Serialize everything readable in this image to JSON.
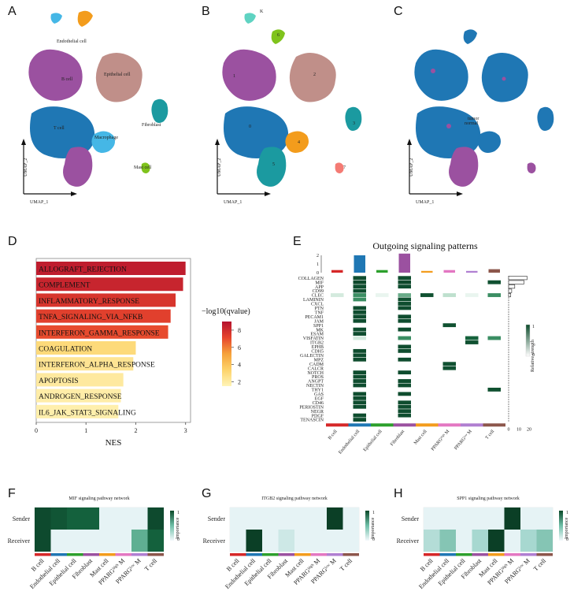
{
  "panels": {
    "A": "A",
    "B": "B",
    "C": "C",
    "D": "D",
    "E": "E",
    "F": "F",
    "G": "G",
    "H": "H"
  },
  "umap": {
    "xlabel": "UMAP_1",
    "ylabel": "UMAP_2",
    "A": {
      "labels": [
        "Endothelial cell",
        "B cell",
        "Epithelial cell",
        "T cell",
        "Macrophage",
        "Fibroblast",
        "Mast cell"
      ]
    },
    "B": {
      "labels": [
        "K",
        "6",
        "1",
        "2",
        "0",
        "4",
        "5",
        "3",
        "7"
      ]
    },
    "C": {
      "labels": [
        "normal",
        "tumor"
      ]
    }
  },
  "colors": {
    "purple": "#9b51a0",
    "blue": "#1f77b4",
    "tan": "#c08f89",
    "teal": "#1b9aa0",
    "orange": "#f39c1c",
    "sky": "#45b7e6",
    "lime": "#7fc31c",
    "salmon": "#f47b74",
    "mint": "#5fd3c2",
    "darkgreen": "#0b4a2a"
  },
  "chart_data": [
    {
      "type": "bar",
      "panel": "D",
      "orientation": "horizontal",
      "categories": [
        "ALLOGRAFT_REJECTION",
        "COMPLEMENT",
        "INFLAMMATORY_RESPONSE",
        "TNFA_SIGNALING_VIA_NFKB",
        "INTERFERON_GAMMA_RESPONSE",
        "COAGULATION",
        "INTERFERON_ALPHA_RESPONSE",
        "APOPTOSIS",
        "ANDROGEN_RESPONSE",
        "IL6_JAK_STAT3_SIGNALING"
      ],
      "values": [
        3.0,
        2.95,
        2.8,
        2.7,
        2.65,
        2.0,
        1.95,
        1.75,
        1.7,
        1.65
      ],
      "color_values": [
        8.6,
        8.3,
        7.7,
        7.3,
        7.0,
        3.0,
        2.4,
        2.1,
        1.9,
        1.8
      ],
      "xlabel": "NES",
      "xlim": [
        0,
        3.1
      ],
      "xticks": [
        "0",
        "1",
        "2",
        "3"
      ],
      "legend_title": "−log10(qvalue)",
      "legend_ticks": [
        "8",
        "6",
        "4",
        "2"
      ],
      "colorbar_range": [
        1.5,
        9
      ]
    },
    {
      "type": "heatmap",
      "panel": "E",
      "title": "Outgoing signaling patterns",
      "columns": [
        "B cell",
        "Endothelial cell",
        "Epithelial cell",
        "Fibroblast",
        "Mast cell",
        "PPARG^high M",
        "PPARG^low M",
        "T cell"
      ],
      "rows": [
        "COLLAGEN",
        "MIF",
        "APP",
        "CD99",
        "CLEC",
        "LAMININ",
        "CXCL",
        "PTN",
        "TNF",
        "PECAM1",
        "JAM",
        "SPP1",
        "MK",
        "ESAM",
        "VISFATIN",
        "ITGB2",
        "EPHB",
        "CDH5",
        "GALECTIN",
        "MPZ",
        "CADM",
        "CALCR",
        "NOTCH",
        "PROS",
        "ANGPT",
        "NECTIN",
        "THY1",
        "GAS",
        "EGF",
        "CD46",
        "PERIOSTIN",
        "NEGR",
        "PDGF",
        "TENASCIN"
      ],
      "top_bar_values": [
        0.3,
        2.0,
        0.3,
        2.2,
        0.2,
        0.3,
        0.2,
        0.4
      ],
      "top_axis_ticks": [
        "2",
        "1",
        "0"
      ],
      "right_bar_values": [
        18,
        15,
        6,
        3,
        2
      ],
      "right_axis_ticks": [
        "0",
        "10",
        "20"
      ],
      "legend_title": "Relative strength",
      "legend_ticks": [
        "1",
        "0"
      ]
    },
    {
      "type": "heatmap",
      "panel": "F",
      "title": "MIF signaling pathway network",
      "rows": [
        "Sender",
        "Receiver"
      ],
      "columns": [
        "B cell",
        "Endothelial cell",
        "Epithelial cell",
        "Fibroblast",
        "Mast cell",
        "PPARG^high M",
        "PPARG^low M",
        "T cell"
      ],
      "values": [
        [
          0.95,
          0.9,
          0.85,
          0.85,
          0.05,
          0.05,
          0.05,
          0.95
        ],
        [
          0.95,
          0.05,
          0.05,
          0.05,
          0.05,
          0.05,
          0.5,
          0.85
        ]
      ],
      "legend_title": "Importance",
      "legend_ticks": [
        "1",
        "0"
      ]
    },
    {
      "type": "heatmap",
      "panel": "G",
      "title": "ITGB2 signaling pathway network",
      "rows": [
        "Sender",
        "Receiver"
      ],
      "columns": [
        "B cell",
        "Endothelial cell",
        "Epithelial cell",
        "Fibroblast",
        "Mast cell",
        "PPARG^high M",
        "PPARG^low M",
        "T cell"
      ],
      "values": [
        [
          0.05,
          0.05,
          0.05,
          0.05,
          0.05,
          0.05,
          1.0,
          0.05
        ],
        [
          0.05,
          1.0,
          0.05,
          0.15,
          0.05,
          0.05,
          0.05,
          0.05
        ]
      ],
      "legend_title": "Importance",
      "legend_ticks": [
        "1",
        "0"
      ]
    },
    {
      "type": "heatmap",
      "panel": "H",
      "title": "SPP1 signaling pathway network",
      "rows": [
        "Sender",
        "Receiver"
      ],
      "columns": [
        "B cell",
        "Endothelial cell",
        "Epithelial cell",
        "Fibroblast",
        "Mast cell",
        "PPARG^high M",
        "PPARG^low M",
        "T cell"
      ],
      "values": [
        [
          0.05,
          0.05,
          0.05,
          0.05,
          0.05,
          1.0,
          0.05,
          0.05
        ],
        [
          0.25,
          0.4,
          0.05,
          0.3,
          1.0,
          0.05,
          0.3,
          0.4
        ]
      ],
      "legend_title": "Importance",
      "legend_ticks": [
        "1",
        "0"
      ]
    }
  ]
}
